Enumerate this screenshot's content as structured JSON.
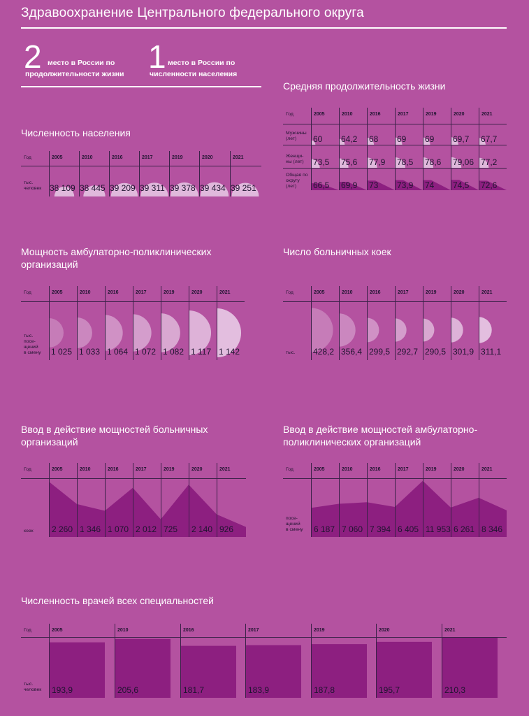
{
  "page": {
    "title": "Здравоохранение Центрального федерального округа",
    "stats": [
      {
        "number": "2",
        "line1": "место в России по",
        "line2": "продолжительности жизни"
      },
      {
        "number": "1",
        "line1": "место в России по",
        "line2": "численности населения"
      }
    ]
  },
  "labels": {
    "year": "Год",
    "population_unit": [
      "тыс.",
      "человек"
    ],
    "visits_unit": [
      "тыс.",
      "посе-",
      "щений",
      "в смену"
    ],
    "beds_unit": [
      "тыс."
    ],
    "new_beds_unit": [
      "коек"
    ],
    "new_visits_unit": [
      "посе-",
      "щений",
      "в смену"
    ],
    "doctors_unit": [
      "тыс.",
      "человек"
    ],
    "men": [
      "Мужчины",
      "(лет)"
    ],
    "women": [
      "Женщи-",
      "ны (лет)"
    ],
    "total": [
      "Общая по",
      "округу",
      "(лет)"
    ]
  },
  "colors": {
    "background": "#b452a0",
    "dark": "#8d1f80",
    "light": "#e8cbe6",
    "line": "#3a2148"
  },
  "chart_data": [
    {
      "id": "population",
      "type": "table",
      "title": "Численность населения",
      "categories": [
        "2005",
        "2010",
        "2016",
        "2017",
        "2019",
        "2020",
        "2021"
      ],
      "values": [
        38109,
        38445,
        39209,
        39311,
        39378,
        39434,
        39251
      ],
      "display": [
        "38 109",
        "38 445",
        "39 209",
        "39 311",
        "39 378",
        "39 434",
        "39 251"
      ]
    },
    {
      "id": "life_expectancy",
      "type": "table",
      "title": "Средняя продолжительность жизни",
      "categories": [
        "2005",
        "2010",
        "2016",
        "2017",
        "2019",
        "2020",
        "2021"
      ],
      "series": [
        {
          "values": [
            60,
            64.2,
            68,
            69,
            69,
            69.7,
            67.7
          ],
          "display": [
            "60",
            "64,2",
            "68",
            "69",
            "69",
            "69,7",
            "67,7"
          ]
        },
        {
          "values": [
            73.5,
            75.6,
            77.9,
            78.5,
            78.6,
            79.06,
            77.2
          ],
          "display": [
            "73,5",
            "75,6",
            "77,9",
            "78,5",
            "78,6",
            "79,06",
            "77,2"
          ]
        },
        {
          "values": [
            66.5,
            69.9,
            73,
            73.9,
            74,
            74.5,
            72.6
          ],
          "display": [
            "66,5",
            "69,9",
            "73",
            "73,9",
            "74",
            "74,5",
            "72,6"
          ]
        }
      ]
    },
    {
      "id": "outpatient_capacity",
      "type": "table",
      "title": "Мощность амбулаторно-поликлинических организаций",
      "categories": [
        "2005",
        "2010",
        "2016",
        "2017",
        "2019",
        "2020",
        "2021"
      ],
      "values": [
        1025,
        1033,
        1064,
        1072,
        1082,
        1117,
        1142
      ],
      "display": [
        "1 025",
        "1 033",
        "1 064",
        "1 072",
        "1 082",
        "1 117",
        "1 142"
      ]
    },
    {
      "id": "hospital_beds",
      "type": "table",
      "title": "Число больничных коек",
      "categories": [
        "2005",
        "2010",
        "2016",
        "2017",
        "2019",
        "2020",
        "2021"
      ],
      "values": [
        428.2,
        356.4,
        299.5,
        292.7,
        290.5,
        301.9,
        311.1
      ],
      "display": [
        "428,2",
        "356,4",
        "299,5",
        "292,7",
        "290,5",
        "301,9",
        "311,1"
      ]
    },
    {
      "id": "new_hospital_capacity",
      "type": "area",
      "title": "Ввод в действие мощностей больничных организаций",
      "categories": [
        "2005",
        "2010",
        "2016",
        "2017",
        "2019",
        "2020",
        "2021"
      ],
      "values": [
        2260,
        1346,
        1070,
        2012,
        725,
        2140,
        926
      ],
      "display": [
        "2 260",
        "1 346",
        "1 070",
        "2 012",
        "725",
        "2 140",
        "926"
      ]
    },
    {
      "id": "new_outpatient_capacity",
      "type": "area",
      "title": "Ввод в действие мощностей амбулаторно-поликлинических организаций",
      "categories": [
        "2005",
        "2010",
        "2016",
        "2017",
        "2019",
        "2020",
        "2021"
      ],
      "values": [
        6187,
        7060,
        7394,
        6405,
        11953,
        6261,
        8346
      ],
      "display": [
        "6 187",
        "7 060",
        "7 394",
        "6 405",
        "11 953",
        "6 261",
        "8 346"
      ]
    },
    {
      "id": "doctors",
      "type": "bar",
      "title": "Численность врачей всех специальностей",
      "categories": [
        "2005",
        "2010",
        "2016",
        "2017",
        "2019",
        "2020",
        "2021"
      ],
      "values": [
        193.9,
        205.6,
        181.7,
        183.9,
        187.8,
        195.7,
        210.3
      ],
      "display": [
        "193,9",
        "205,6",
        "181,7",
        "183,9",
        "187,8",
        "195,7",
        "210,3"
      ]
    }
  ]
}
